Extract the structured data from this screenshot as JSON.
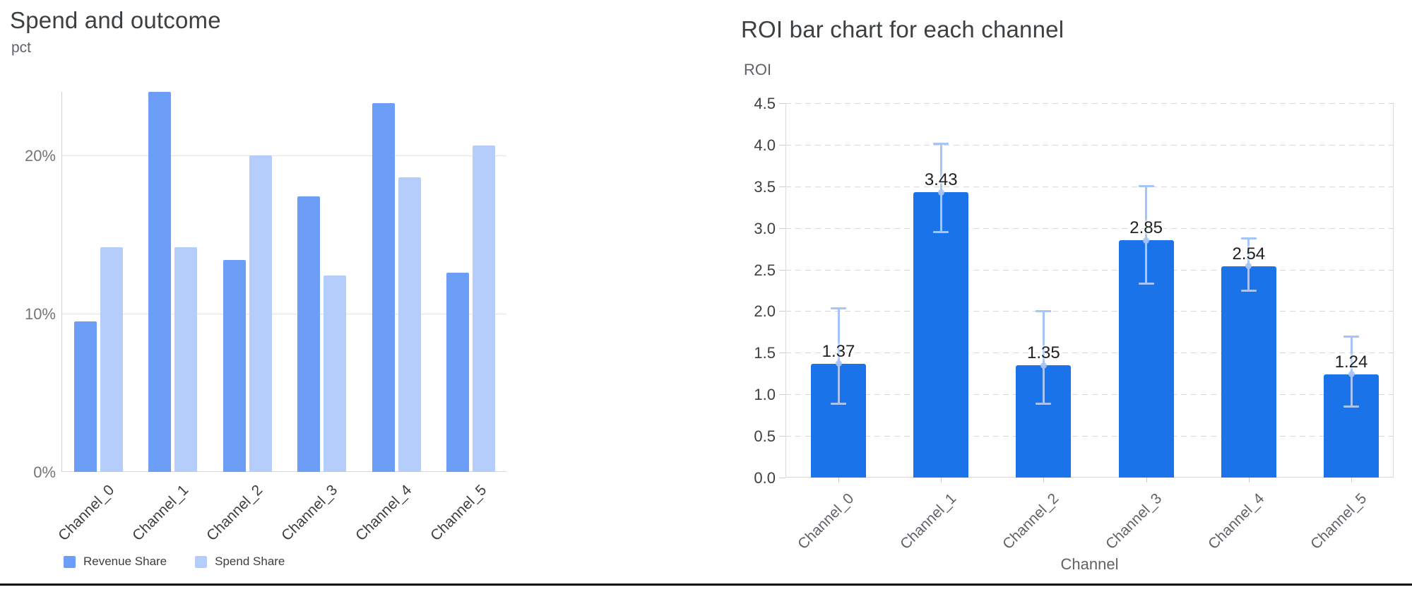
{
  "page": {
    "background": "#ffffff",
    "divider_color": "#0b0b0b"
  },
  "chart_data": [
    {
      "id": "spend-and-outcome",
      "type": "bar",
      "title": "Spend and outcome",
      "ylabel": "pct",
      "xlabel": "",
      "categories": [
        "Channel_0",
        "Channel_1",
        "Channel_2",
        "Channel_3",
        "Channel_4",
        "Channel_5"
      ],
      "series": [
        {
          "name": "Revenue Share",
          "color": "#6D9EF7",
          "values": [
            9.5,
            24.0,
            13.4,
            17.4,
            23.3,
            12.6
          ]
        },
        {
          "name": "Spend Share",
          "color": "#B4CDFB",
          "values": [
            14.2,
            14.2,
            20.0,
            12.4,
            18.6,
            20.6
          ]
        }
      ],
      "ylim": [
        0,
        24.0
      ],
      "y_tick_values": [
        0,
        10,
        20
      ],
      "y_tick_labels": [
        "0%",
        "10%",
        "20%"
      ],
      "grid": "solid",
      "legend_position": "bottom"
    },
    {
      "id": "roi-by-channel",
      "type": "bar",
      "title": "ROI bar chart for each channel",
      "ylabel": "ROI",
      "xlabel": "Channel",
      "categories": [
        "Channel_0",
        "Channel_1",
        "Channel_2",
        "Channel_3",
        "Channel_4",
        "Channel_5"
      ],
      "series": [
        {
          "name": "ROI",
          "color": "#1A73E8",
          "values": [
            1.37,
            3.43,
            1.35,
            2.85,
            2.54,
            1.24
          ]
        }
      ],
      "bar_labels": [
        "1.37",
        "3.43",
        "1.35",
        "2.85",
        "2.54",
        "1.24"
      ],
      "error_bars": {
        "color": "#A6C4F7",
        "low": [
          0.88,
          2.95,
          0.88,
          2.33,
          2.24,
          0.85
        ],
        "high": [
          2.04,
          4.02,
          2.0,
          3.51,
          2.88,
          1.7
        ]
      },
      "ylim": [
        0,
        4.5
      ],
      "y_tick_values": [
        0,
        0.5,
        1.0,
        1.5,
        2.0,
        2.5,
        3.0,
        3.5,
        4.0,
        4.5
      ],
      "y_tick_labels": [
        "0.0",
        "0.5",
        "1.0",
        "1.5",
        "2.0",
        "2.5",
        "3.0",
        "3.5",
        "4.0",
        "4.5"
      ],
      "grid": "dashed",
      "legend_position": "none"
    }
  ]
}
